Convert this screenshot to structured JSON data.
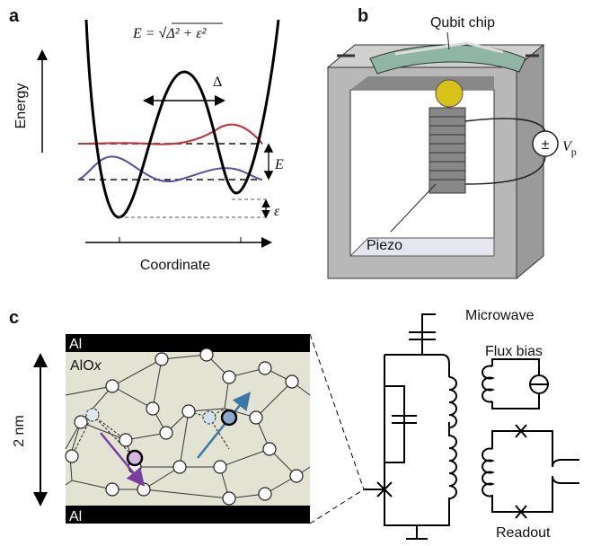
{
  "panel_a": {
    "label": "a",
    "equation": {
      "lhs": "E = ",
      "root": "√",
      "radicand": "Δ² + ε²"
    },
    "y_axis": "Energy",
    "tunnel": "Δ",
    "splitting": "E",
    "bias": "ε",
    "x_axis": "Coordinate"
  },
  "panel_b": {
    "label": "b",
    "chip": "Qubit chip",
    "source": "±",
    "voltage": {
      "symbol": "V",
      "subscript": "p"
    },
    "piezo": "Piezo"
  },
  "panel_c": {
    "label": "c",
    "top_electrode": "Al",
    "oxide": {
      "base": "AlO",
      "suffix": "x"
    },
    "thickness": "2 nm",
    "bottom_electrode": "Al",
    "microwave": "Microwave",
    "flux": "Flux bias",
    "readout": "Readout"
  }
}
